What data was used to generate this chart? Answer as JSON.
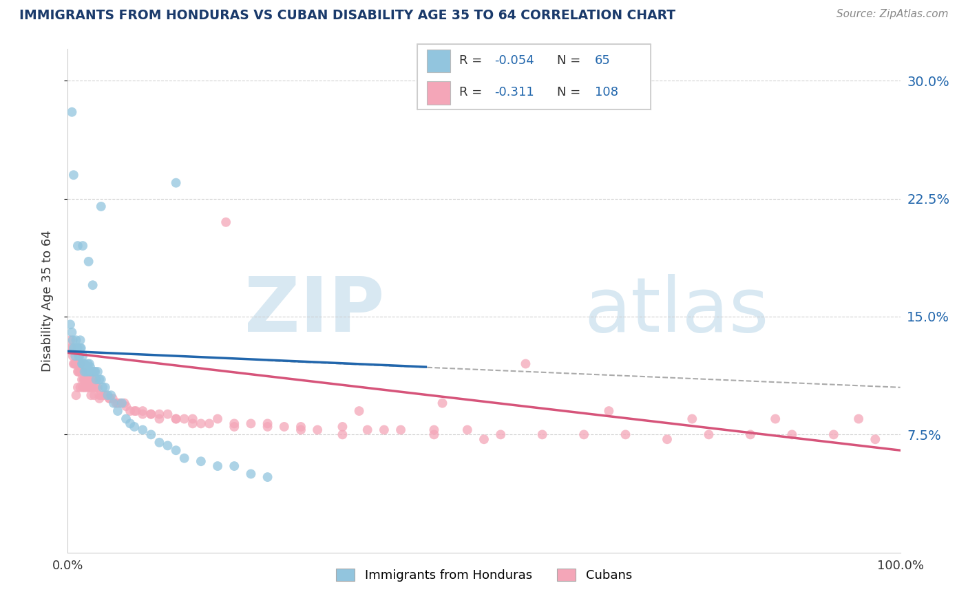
{
  "title": "IMMIGRANTS FROM HONDURAS VS CUBAN DISABILITY AGE 35 TO 64 CORRELATION CHART",
  "source_text": "Source: ZipAtlas.com",
  "ylabel": "Disability Age 35 to 64",
  "xlabel": "",
  "xlim": [
    0.0,
    1.0
  ],
  "ylim": [
    0.0,
    0.32
  ],
  "xtick_labels": [
    "0.0%",
    "100.0%"
  ],
  "ytick_labels": [
    "7.5%",
    "15.0%",
    "22.5%",
    "30.0%"
  ],
  "ytick_values": [
    0.075,
    0.15,
    0.225,
    0.3
  ],
  "color_blue": "#92c5de",
  "color_pink": "#f4a6b8",
  "color_blue_dark": "#2166ac",
  "color_pink_dark": "#d6547a",
  "color_text_blue": "#2166ac",
  "title_color": "#1a3a6b",
  "source_color": "#888888",
  "watermark_zip": "ZIP",
  "watermark_atlas": "atlas",
  "watermark_color": "#d8e8f2",
  "grid_color": "#cccccc",
  "honduras_x": [
    0.003,
    0.005,
    0.006,
    0.007,
    0.008,
    0.009,
    0.01,
    0.011,
    0.012,
    0.013,
    0.014,
    0.015,
    0.015,
    0.016,
    0.017,
    0.018,
    0.018,
    0.019,
    0.02,
    0.02,
    0.021,
    0.022,
    0.023,
    0.024,
    0.025,
    0.026,
    0.027,
    0.028,
    0.029,
    0.03,
    0.032,
    0.033,
    0.034,
    0.036,
    0.038,
    0.04,
    0.042,
    0.045,
    0.048,
    0.052,
    0.055,
    0.06,
    0.065,
    0.07,
    0.075,
    0.08,
    0.09,
    0.1,
    0.11,
    0.12,
    0.13,
    0.14,
    0.16,
    0.18,
    0.2,
    0.22,
    0.24,
    0.04,
    0.13,
    0.005,
    0.007,
    0.012,
    0.018,
    0.025,
    0.03
  ],
  "honduras_y": [
    0.145,
    0.14,
    0.135,
    0.13,
    0.13,
    0.125,
    0.135,
    0.13,
    0.13,
    0.125,
    0.125,
    0.13,
    0.135,
    0.13,
    0.12,
    0.12,
    0.125,
    0.12,
    0.12,
    0.115,
    0.118,
    0.115,
    0.118,
    0.12,
    0.115,
    0.12,
    0.118,
    0.115,
    0.115,
    0.115,
    0.115,
    0.115,
    0.11,
    0.115,
    0.11,
    0.11,
    0.105,
    0.105,
    0.1,
    0.1,
    0.095,
    0.09,
    0.095,
    0.085,
    0.082,
    0.08,
    0.078,
    0.075,
    0.07,
    0.068,
    0.065,
    0.06,
    0.058,
    0.055,
    0.055,
    0.05,
    0.048,
    0.22,
    0.235,
    0.28,
    0.24,
    0.195,
    0.195,
    0.185,
    0.17
  ],
  "cubans_x": [
    0.003,
    0.004,
    0.005,
    0.006,
    0.007,
    0.008,
    0.009,
    0.01,
    0.011,
    0.012,
    0.013,
    0.014,
    0.015,
    0.016,
    0.017,
    0.018,
    0.019,
    0.02,
    0.021,
    0.022,
    0.023,
    0.024,
    0.025,
    0.026,
    0.027,
    0.028,
    0.029,
    0.03,
    0.032,
    0.034,
    0.036,
    0.038,
    0.04,
    0.043,
    0.046,
    0.05,
    0.054,
    0.058,
    0.063,
    0.068,
    0.075,
    0.082,
    0.09,
    0.1,
    0.11,
    0.12,
    0.13,
    0.14,
    0.15,
    0.16,
    0.18,
    0.2,
    0.22,
    0.24,
    0.26,
    0.28,
    0.3,
    0.33,
    0.36,
    0.4,
    0.44,
    0.48,
    0.52,
    0.57,
    0.62,
    0.67,
    0.72,
    0.77,
    0.82,
    0.87,
    0.92,
    0.97,
    0.19,
    0.55,
    0.65,
    0.75,
    0.85,
    0.95,
    0.35,
    0.45,
    0.03,
    0.025,
    0.02,
    0.018,
    0.015,
    0.012,
    0.01,
    0.022,
    0.028,
    0.032,
    0.038,
    0.05,
    0.06,
    0.07,
    0.08,
    0.09,
    0.1,
    0.11,
    0.13,
    0.15,
    0.17,
    0.2,
    0.24,
    0.28,
    0.33,
    0.38,
    0.44,
    0.5
  ],
  "cubans_y": [
    0.135,
    0.13,
    0.13,
    0.125,
    0.12,
    0.12,
    0.12,
    0.12,
    0.12,
    0.115,
    0.115,
    0.115,
    0.12,
    0.115,
    0.11,
    0.115,
    0.11,
    0.11,
    0.11,
    0.108,
    0.11,
    0.11,
    0.108,
    0.11,
    0.105,
    0.108,
    0.105,
    0.11,
    0.105,
    0.105,
    0.105,
    0.1,
    0.1,
    0.1,
    0.1,
    0.098,
    0.098,
    0.095,
    0.095,
    0.095,
    0.09,
    0.09,
    0.09,
    0.088,
    0.088,
    0.088,
    0.085,
    0.085,
    0.085,
    0.082,
    0.085,
    0.082,
    0.082,
    0.08,
    0.08,
    0.078,
    0.078,
    0.075,
    0.078,
    0.078,
    0.078,
    0.078,
    0.075,
    0.075,
    0.075,
    0.075,
    0.072,
    0.075,
    0.075,
    0.075,
    0.075,
    0.072,
    0.21,
    0.12,
    0.09,
    0.085,
    0.085,
    0.085,
    0.09,
    0.095,
    0.11,
    0.105,
    0.105,
    0.105,
    0.105,
    0.105,
    0.1,
    0.105,
    0.1,
    0.1,
    0.098,
    0.098,
    0.095,
    0.093,
    0.09,
    0.088,
    0.088,
    0.085,
    0.085,
    0.082,
    0.082,
    0.08,
    0.082,
    0.08,
    0.08,
    0.078,
    0.075,
    0.072
  ],
  "honduras_trend_x0": 0.0,
  "honduras_trend_x1": 0.43,
  "honduras_trend_y0": 0.128,
  "honduras_trend_y1": 0.118,
  "dashed_trend_x0": 0.24,
  "dashed_trend_x1": 1.0,
  "dashed_trend_y0": 0.122,
  "dashed_trend_y1": 0.105,
  "cubans_trend_x0": 0.0,
  "cubans_trend_x1": 1.0,
  "cubans_trend_y0": 0.127,
  "cubans_trend_y1": 0.065
}
